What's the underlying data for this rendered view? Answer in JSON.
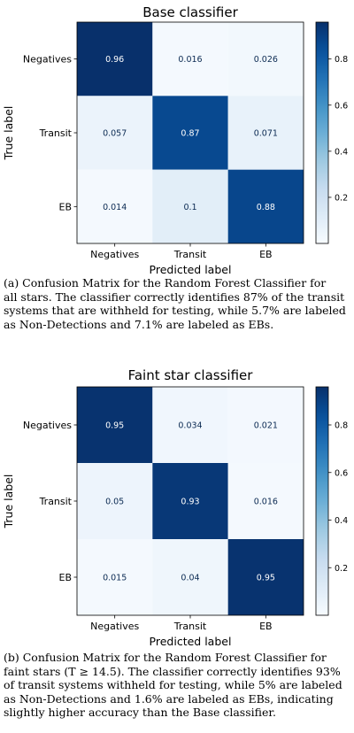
{
  "chart_data": [
    {
      "type": "heatmap",
      "title": "Base classifier",
      "xlabel": "Predicted label",
      "ylabel": "True label",
      "x_categories": [
        "Negatives",
        "Transit",
        "EB"
      ],
      "y_categories": [
        "Negatives",
        "Transit",
        "EB"
      ],
      "values": [
        [
          0.96,
          0.016,
          0.026
        ],
        [
          0.057,
          0.87,
          0.071
        ],
        [
          0.014,
          0.1,
          0.88
        ]
      ],
      "value_labels": [
        [
          "0.96",
          "0.016",
          "0.026"
        ],
        [
          "0.057",
          "0.87",
          "0.071"
        ],
        [
          "0.014",
          "0.1",
          "0.88"
        ]
      ],
      "colorbar": {
        "ticks": [
          "0.8",
          "0.6",
          "0.4",
          "0.2"
        ],
        "tick_values": [
          0.8,
          0.6,
          0.4,
          0.2
        ],
        "range": [
          0.0,
          0.96
        ]
      },
      "colormap": "Blues",
      "caption_lines": [
        "(a) Confusion Matrix for the Random Forest Classifier for",
        "all stars. The classifier correctly identifies 87% of the transit",
        "systems that are withheld for testing, while 5.7% are labeled",
        "as Non-Detections and 7.1% are labeled as EBs."
      ]
    },
    {
      "type": "heatmap",
      "title": "Faint star classifier",
      "xlabel": "Predicted label",
      "ylabel": "True label",
      "x_categories": [
        "Negatives",
        "Transit",
        "EB"
      ],
      "y_categories": [
        "Negatives",
        "Transit",
        "EB"
      ],
      "values": [
        [
          0.95,
          0.034,
          0.021
        ],
        [
          0.05,
          0.93,
          0.016
        ],
        [
          0.015,
          0.04,
          0.95
        ]
      ],
      "value_labels": [
        [
          "0.95",
          "0.034",
          "0.021"
        ],
        [
          "0.05",
          "0.93",
          "0.016"
        ],
        [
          "0.015",
          "0.04",
          "0.95"
        ]
      ],
      "colorbar": {
        "ticks": [
          "0.8",
          "0.6",
          "0.4",
          "0.2"
        ],
        "tick_values": [
          0.8,
          0.6,
          0.4,
          0.2
        ],
        "range": [
          0.0,
          0.96
        ]
      },
      "colormap": "Blues",
      "caption_lines": [
        "(b) Confusion Matrix for the Random Forest Classifier for",
        "faint stars (T ≥ 14.5). The classifier correctly identifies 93%",
        "of transit systems withheld for testing, while 5% are labeled",
        "as Non-Detections and 1.6% are labeled as EBs, indicating",
        "slightly higher accuracy than the Base classifier."
      ]
    }
  ]
}
